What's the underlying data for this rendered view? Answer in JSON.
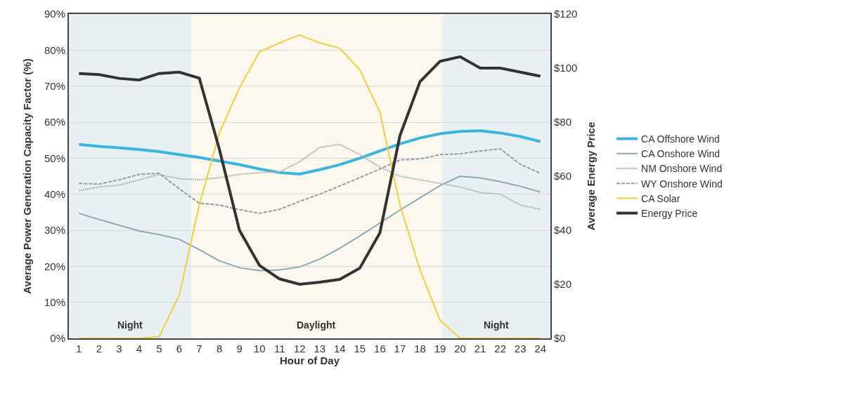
{
  "chart_data": {
    "type": "line",
    "xlabel": "Hour of Day",
    "ylabel": "Average Power Generation Capacity Factor (%)",
    "y2label": "Average Energy Price",
    "x": [
      1,
      2,
      3,
      4,
      5,
      6,
      7,
      8,
      9,
      10,
      11,
      12,
      13,
      14,
      15,
      16,
      17,
      18,
      19,
      20,
      21,
      22,
      23,
      24
    ],
    "xlim": [
      0.5,
      24.5
    ],
    "xticks": [
      1,
      2,
      3,
      4,
      5,
      6,
      7,
      8,
      9,
      10,
      11,
      12,
      13,
      14,
      15,
      16,
      17,
      18,
      19,
      20,
      21,
      22,
      23,
      24
    ],
    "ylim": [
      0,
      90
    ],
    "yticks": [
      {
        "value": 0,
        "label": "0%"
      },
      {
        "value": 10,
        "label": "10%"
      },
      {
        "value": 20,
        "label": "20%"
      },
      {
        "value": 30,
        "label": "30%"
      },
      {
        "value": 40,
        "label": "40%"
      },
      {
        "value": 50,
        "label": "50%"
      },
      {
        "value": 60,
        "label": "60%"
      },
      {
        "value": 70,
        "label": "70%"
      },
      {
        "value": 80,
        "label": "80%"
      },
      {
        "value": 90,
        "label": "90%"
      }
    ],
    "y2lim": [
      0,
      120
    ],
    "y2ticks": [
      {
        "value": 0,
        "label": "$0"
      },
      {
        "value": 20,
        "label": "$20"
      },
      {
        "value": 40,
        "label": "$40"
      },
      {
        "value": 60,
        "label": "$60"
      },
      {
        "value": 80,
        "label": "$80"
      },
      {
        "value": 100,
        "label": "$100"
      },
      {
        "value": 120,
        "label": "$120"
      }
    ],
    "grid": "y",
    "legend": "right",
    "marker": "none",
    "bands": [
      {
        "axis": "x",
        "from": 0.5,
        "to": 6.6,
        "label": "Night",
        "color": "#e9f0f3"
      },
      {
        "axis": "x",
        "from": 6.6,
        "to": 19.1,
        "label": "Daylight",
        "color": "#fdf8ed"
      },
      {
        "axis": "x",
        "from": 19.1,
        "to": 24.5,
        "label": "Night",
        "color": "#e9f0f3"
      }
    ],
    "series": [
      {
        "name": "CA Offshore Wind",
        "color": "#3bb4e0",
        "line_style": "solid",
        "values": [
          53.8,
          53.3,
          52.9,
          52.4,
          51.8,
          51,
          50.2,
          49.2,
          48.2,
          47,
          46,
          45.6,
          46.8,
          48.2,
          50,
          52,
          54,
          55.6,
          56.8,
          57.4,
          57.6,
          57,
          56,
          54.6
        ]
      },
      {
        "name": "CA Onshore Wind",
        "color": "#8aa9b4",
        "line_style": "solid",
        "values": [
          34.7,
          33,
          31.4,
          29.8,
          28.8,
          27.5,
          24.6,
          21.5,
          19.6,
          18.8,
          19,
          19.8,
          22,
          25,
          28.4,
          32,
          35.6,
          39,
          42.4,
          45,
          44.5,
          43.5,
          42.2,
          40.6
        ]
      },
      {
        "name": "NM Onshore Wind",
        "color": "#a7b4b8",
        "line_style": "dotted",
        "values": [
          41,
          42,
          42.5,
          44,
          45.5,
          44.3,
          44,
          44.6,
          45.5,
          46,
          46.2,
          49,
          53,
          53.8,
          51,
          47.5,
          45,
          44,
          43,
          42,
          40.5,
          40,
          37,
          35.8
        ]
      },
      {
        "name": "WY Onshore Wind",
        "color": "#8f9ea4",
        "line_style": "dashed",
        "values": [
          43,
          42.8,
          44,
          45.5,
          45.8,
          41.5,
          37.5,
          37,
          35.7,
          34.7,
          35.8,
          38,
          40,
          42.3,
          44.6,
          47,
          49.5,
          49.8,
          51,
          51.2,
          52,
          52.6,
          48.3,
          45.8
        ]
      },
      {
        "name": "CA Solar",
        "color": "#f2cd3c",
        "line_style": "solid",
        "values": [
          0,
          0,
          0,
          0,
          0.5,
          12,
          37,
          57,
          69.5,
          79.5,
          82,
          84.2,
          82,
          80.5,
          74.5,
          62.8,
          37,
          19,
          5,
          0,
          0,
          0,
          0,
          0
        ]
      },
      {
        "name": "Energy Price",
        "color": "#333333",
        "line_style": "solid",
        "axis": "y2",
        "values": [
          98,
          97.6,
          96.2,
          95.6,
          98,
          98.5,
          96.3,
          70,
          40,
          27,
          22,
          20,
          20.8,
          21.8,
          26,
          39,
          75,
          95,
          102.5,
          104.2,
          100,
          100,
          98.5,
          97
        ]
      }
    ]
  }
}
